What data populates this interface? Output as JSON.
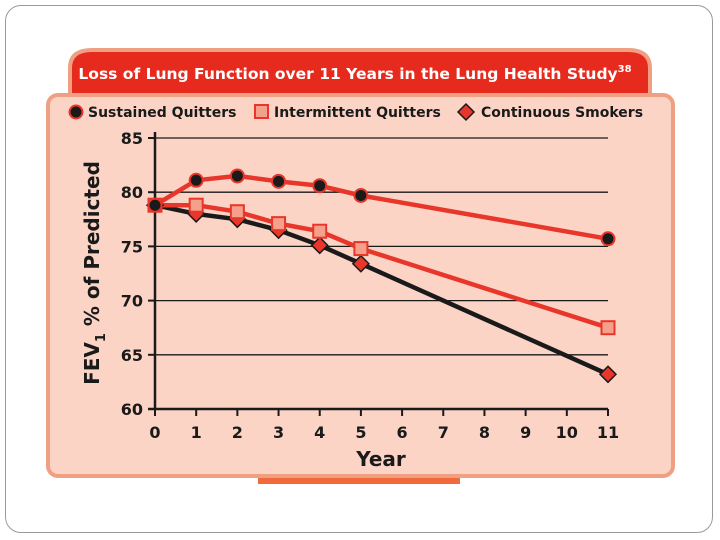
{
  "chart_data": {
    "type": "line",
    "title": "Loss of Lung Function over 11 Years in the Lung Health Study",
    "title_superscript": "38",
    "xlabel": "Year",
    "ylabel_main": "FEV",
    "ylabel_sub": "1",
    "ylabel_rest": " % of Predicted",
    "xlim": [
      0,
      11
    ],
    "ylim": [
      60,
      85
    ],
    "xticks": [
      0,
      1,
      2,
      3,
      4,
      5,
      6,
      7,
      8,
      9,
      10,
      11
    ],
    "yticks": [
      60,
      65,
      70,
      75,
      80,
      85
    ],
    "grid": "horizontal",
    "legend_position": "top",
    "colors": {
      "panel_fill": "#fbd4c6",
      "panel_border": "#f0a082",
      "title_bar": "#e62b1e",
      "sustained_line": "#e8362a",
      "intermittent_line": "#e8362a",
      "smokers_line": "#1a1a1a"
    },
    "series": [
      {
        "name": "Sustained Quitters",
        "marker": "circle",
        "x": [
          0,
          1,
          2,
          3,
          4,
          5,
          11
        ],
        "values": [
          78.8,
          81.1,
          81.5,
          81.0,
          80.6,
          79.7,
          75.7
        ]
      },
      {
        "name": "Intermittent Quitters",
        "marker": "square",
        "x": [
          0,
          1,
          2,
          3,
          4,
          5,
          11
        ],
        "values": [
          78.8,
          78.8,
          78.2,
          77.1,
          76.4,
          74.8,
          67.5
        ]
      },
      {
        "name": "Continuous Smokers",
        "marker": "diamond",
        "x": [
          0,
          1,
          2,
          3,
          4,
          5,
          11
        ],
        "values": [
          78.8,
          78.0,
          77.5,
          76.5,
          75.1,
          73.4,
          63.2
        ]
      }
    ]
  }
}
